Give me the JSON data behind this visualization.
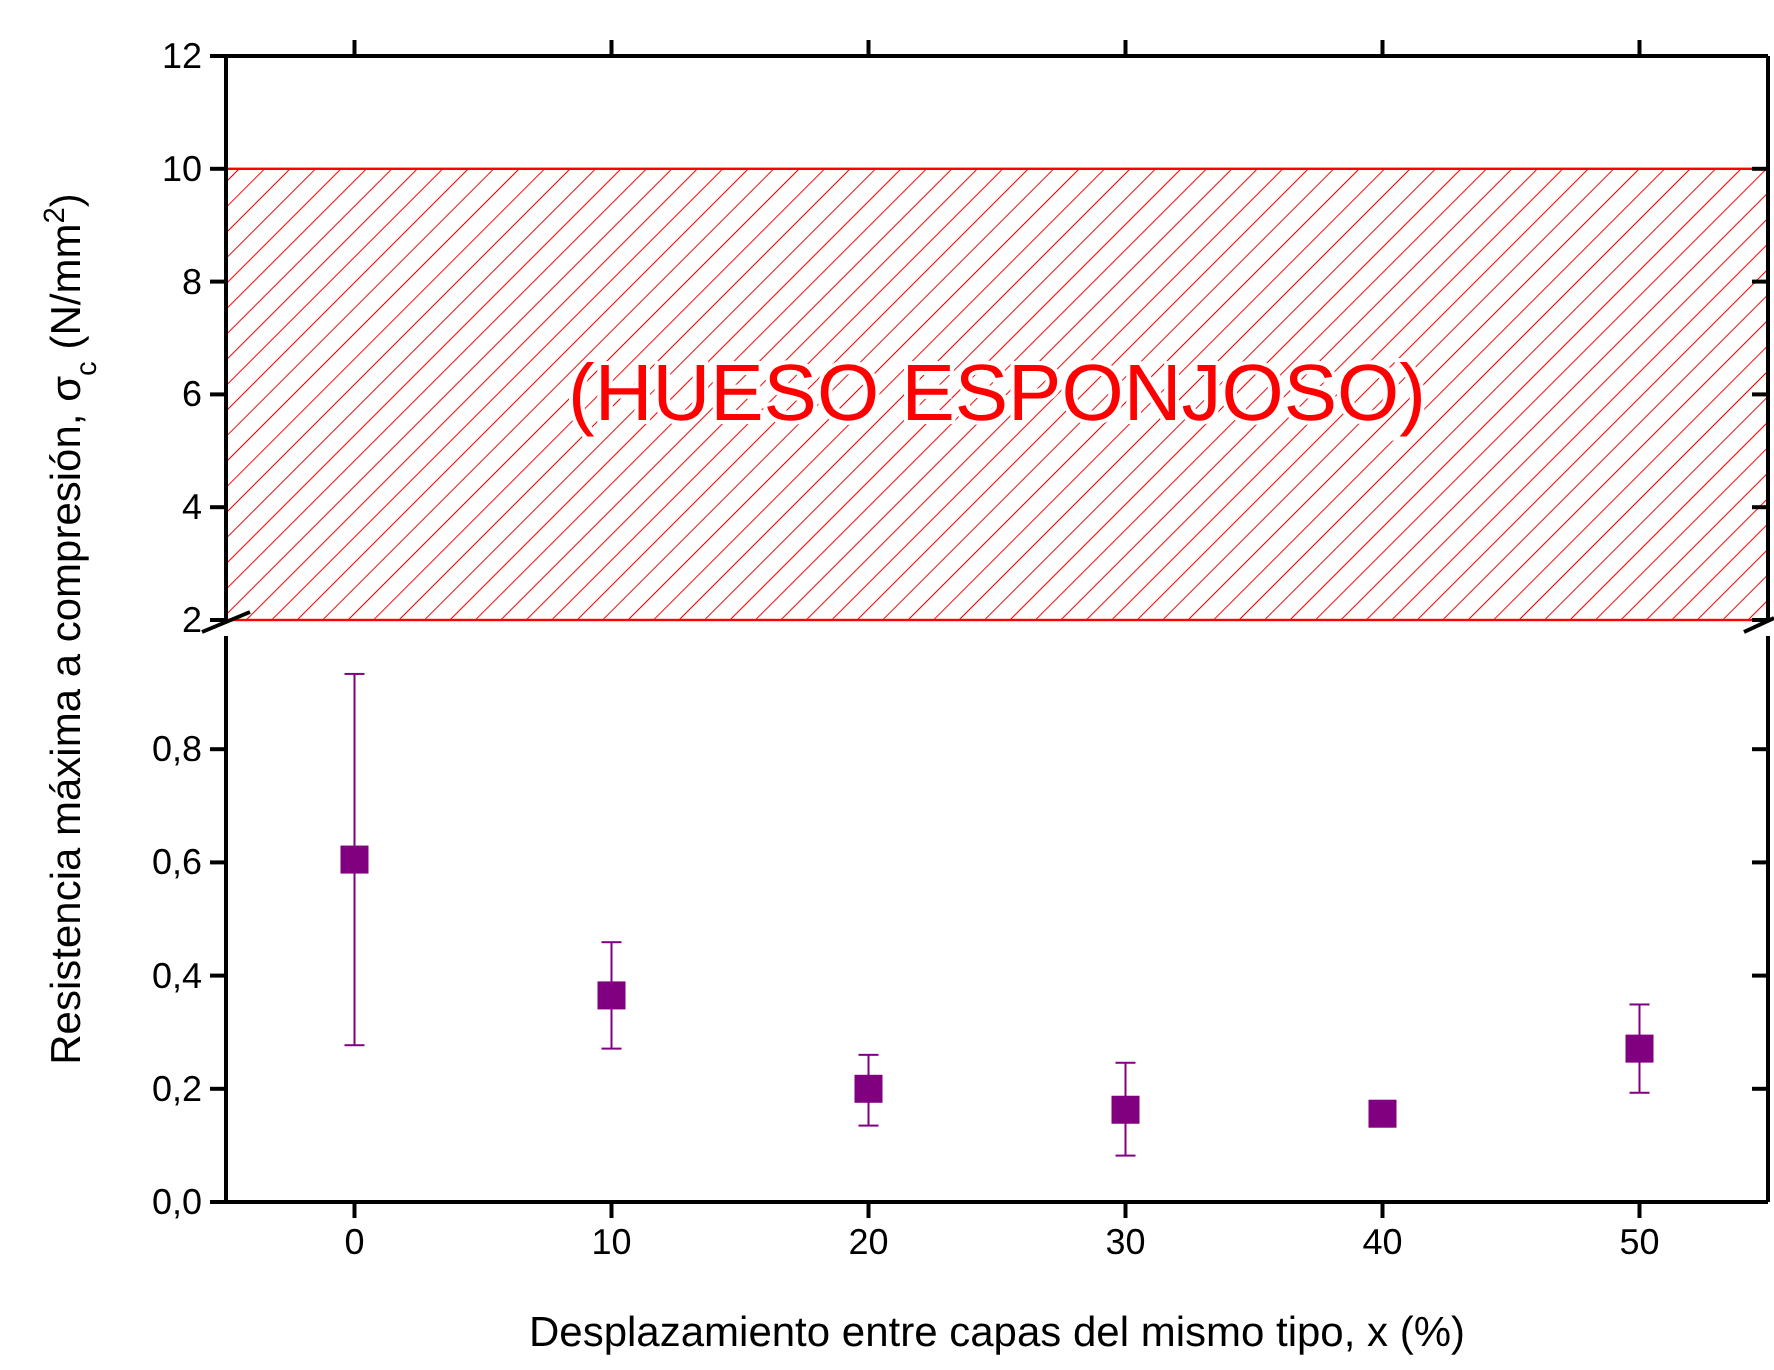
{
  "chart_data": [
    {
      "type": "scatter",
      "ylabel": "Resistencia máxima a compresión, σ$_{c}$ (N/mm$^{2}$)",
      "xlim": [
        -5,
        55
      ],
      "xticks": [
        0,
        10,
        20,
        30,
        40,
        50
      ],
      "ylim": [
        2,
        12
      ],
      "yticks": [
        2,
        4,
        6,
        8,
        10,
        12
      ],
      "tick_labels": "y",
      "bands": [
        {
          "axis": "y",
          "from": 2,
          "to": 10,
          "label": "(HUESO ESPONJOSO)",
          "color": "#ff0000"
        }
      ]
    },
    {
      "type": "scatter",
      "xlabel": "Desplazamiento entre capas del mismo tipo, x (%)",
      "xlim": [
        -5,
        55
      ],
      "xticks": [
        0,
        10,
        20,
        30,
        40,
        50
      ],
      "ylim": [
        0,
        1.0
      ],
      "yticks": [
        {
          "value": 0,
          "label": "0,0"
        },
        {
          "value": 0.2,
          "label": "0,2"
        },
        {
          "value": 0.4,
          "label": "0,4"
        },
        {
          "value": 0.6,
          "label": "0,6"
        },
        {
          "value": 0.8,
          "label": "0,8"
        }
      ],
      "marker": "square",
      "series": [
        {
          "color": "#800080",
          "x": [
            0,
            10,
            20,
            30,
            40,
            50
          ],
          "values": [
            0.605,
            0.365,
            0.2,
            0.163,
            0.156,
            0.271
          ],
          "errors": [
            [
              0.277,
              0.933
            ],
            [
              0.271,
              0.459
            ],
            [
              0.135,
              0.26
            ],
            [
              0.082,
              0.246
            ],
            null,
            [
              0.193,
              0.349
            ]
          ]
        }
      ]
    }
  ]
}
